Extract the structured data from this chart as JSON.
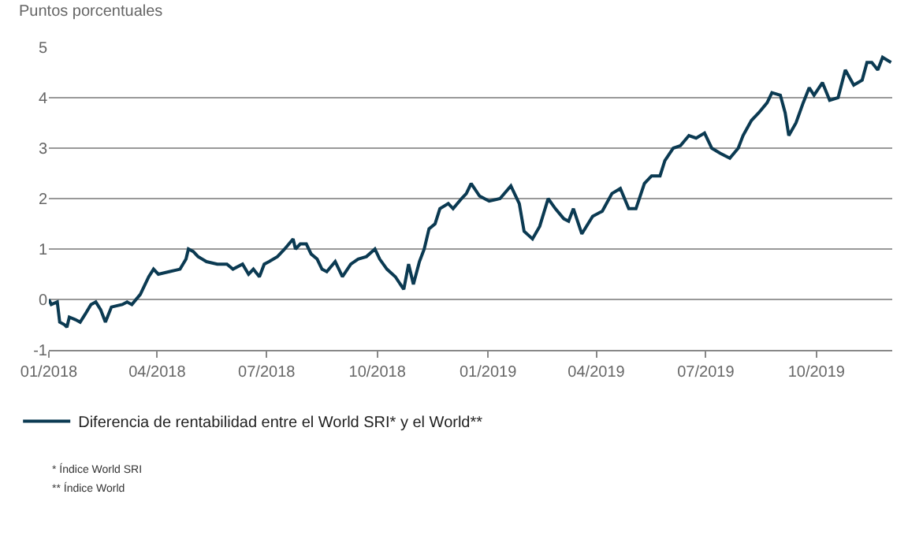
{
  "chart_data": {
    "type": "line",
    "ylabel": "Puntos porcentuales",
    "xlim": [
      "2018-01-01",
      "2019-12-03"
    ],
    "xticks": [
      {
        "value": "2018-01-01",
        "label": "01/2018"
      },
      {
        "value": "2018-04-01",
        "label": "04/2018"
      },
      {
        "value": "2018-07-01",
        "label": "07/2018"
      },
      {
        "value": "2018-10-01",
        "label": "10/2018"
      },
      {
        "value": "2019-01-01",
        "label": "01/2019"
      },
      {
        "value": "2019-04-01",
        "label": "04/2019"
      },
      {
        "value": "2019-07-01",
        "label": "07/2019"
      },
      {
        "value": "2019-10-01",
        "label": "10/2019"
      }
    ],
    "ylim": [
      -1,
      5
    ],
    "yticks": [
      -1,
      0,
      1,
      2,
      3,
      4,
      5
    ],
    "grid": "y",
    "legend": "bottom",
    "marker": "none",
    "line_style": "solid",
    "x": [
      "2018-01-01",
      "2018-01-03",
      "2018-01-08",
      "2018-01-10",
      "2018-01-14",
      "2018-01-16",
      "2018-01-18",
      "2018-01-23",
      "2018-01-27",
      "2018-01-31",
      "2018-02-05",
      "2018-02-09",
      "2018-02-13",
      "2018-02-17",
      "2018-02-22",
      "2018-03-03",
      "2018-03-07",
      "2018-03-11",
      "2018-03-18",
      "2018-03-25",
      "2018-03-29",
      "2018-04-02",
      "2018-04-11",
      "2018-04-20",
      "2018-04-25",
      "2018-04-27",
      "2018-05-01",
      "2018-05-05",
      "2018-05-12",
      "2018-05-21",
      "2018-05-29",
      "2018-06-03",
      "2018-06-11",
      "2018-06-16",
      "2018-06-20",
      "2018-06-25",
      "2018-06-29",
      "2018-07-03",
      "2018-07-10",
      "2018-07-16",
      "2018-07-23",
      "2018-07-25",
      "2018-07-29",
      "2018-08-03",
      "2018-08-07",
      "2018-08-12",
      "2018-08-16",
      "2018-08-20",
      "2018-08-27",
      "2018-09-02",
      "2018-09-09",
      "2018-09-15",
      "2018-09-22",
      "2018-09-29",
      "2018-10-03",
      "2018-10-09",
      "2018-10-16",
      "2018-10-23",
      "2018-10-27",
      "2018-10-31",
      "2018-11-05",
      "2018-11-09",
      "2018-11-13",
      "2018-11-18",
      "2018-11-22",
      "2018-11-29",
      "2018-12-03",
      "2018-12-10",
      "2018-12-14",
      "2018-12-18",
      "2018-12-25",
      "2019-01-02",
      "2019-01-11",
      "2019-01-20",
      "2019-01-27",
      "2019-01-31",
      "2019-02-07",
      "2019-02-13",
      "2019-02-20",
      "2019-02-26",
      "2019-03-05",
      "2019-03-09",
      "2019-03-13",
      "2019-03-20",
      "2019-03-29",
      "2019-04-06",
      "2019-04-14",
      "2019-04-21",
      "2019-04-28",
      "2019-05-04",
      "2019-05-11",
      "2019-05-17",
      "2019-05-24",
      "2019-05-28",
      "2019-06-04",
      "2019-06-10",
      "2019-06-17",
      "2019-06-23",
      "2019-06-30",
      "2019-07-06",
      "2019-07-13",
      "2019-07-21",
      "2019-07-28",
      "2019-08-01",
      "2019-08-08",
      "2019-08-14",
      "2019-08-21",
      "2019-08-25",
      "2019-09-01",
      "2019-09-05",
      "2019-09-08",
      "2019-09-14",
      "2019-09-20",
      "2019-09-25",
      "2019-09-29",
      "2019-10-06",
      "2019-10-12",
      "2019-10-19",
      "2019-10-25",
      "2019-11-01",
      "2019-11-08",
      "2019-11-12",
      "2019-11-16",
      "2019-11-21",
      "2019-11-25",
      "2019-12-02"
    ],
    "series": [
      {
        "name": "Diferencia de rentabilidad entre el World SRI* y el World**",
        "color": "#0b3a52",
        "values": [
          0.0,
          -0.1,
          -0.05,
          -0.45,
          -0.5,
          -0.55,
          -0.35,
          -0.4,
          -0.45,
          -0.3,
          -0.1,
          -0.05,
          -0.2,
          -0.45,
          -0.15,
          -0.1,
          -0.05,
          -0.1,
          0.1,
          0.45,
          0.6,
          0.5,
          0.55,
          0.6,
          0.8,
          1.0,
          0.95,
          0.85,
          0.75,
          0.7,
          0.7,
          0.6,
          0.7,
          0.5,
          0.6,
          0.45,
          0.7,
          0.75,
          0.85,
          1.0,
          1.2,
          1.0,
          1.1,
          1.1,
          0.9,
          0.8,
          0.6,
          0.55,
          0.75,
          0.45,
          0.7,
          0.8,
          0.85,
          1.0,
          0.8,
          0.6,
          0.45,
          0.2,
          0.7,
          0.3,
          0.75,
          1.0,
          1.4,
          1.5,
          1.8,
          1.9,
          1.8,
          2.0,
          2.1,
          2.3,
          2.05,
          1.95,
          2.0,
          2.25,
          1.9,
          1.35,
          1.2,
          1.45,
          2.0,
          1.8,
          1.6,
          1.55,
          1.8,
          1.3,
          1.65,
          1.75,
          2.1,
          2.2,
          1.8,
          1.8,
          2.3,
          2.45,
          2.45,
          2.75,
          3.0,
          3.05,
          3.25,
          3.2,
          3.3,
          3.0,
          2.9,
          2.8,
          3.0,
          3.25,
          3.55,
          3.7,
          3.9,
          4.1,
          4.05,
          3.7,
          3.25,
          3.5,
          3.9,
          4.2,
          4.05,
          4.3,
          3.95,
          4.0,
          4.55,
          4.25,
          4.35,
          4.7,
          4.7,
          4.55,
          4.8,
          4.7
        ]
      }
    ],
    "annotations": [
      "* Índice World SRI",
      "** Índice World"
    ]
  }
}
